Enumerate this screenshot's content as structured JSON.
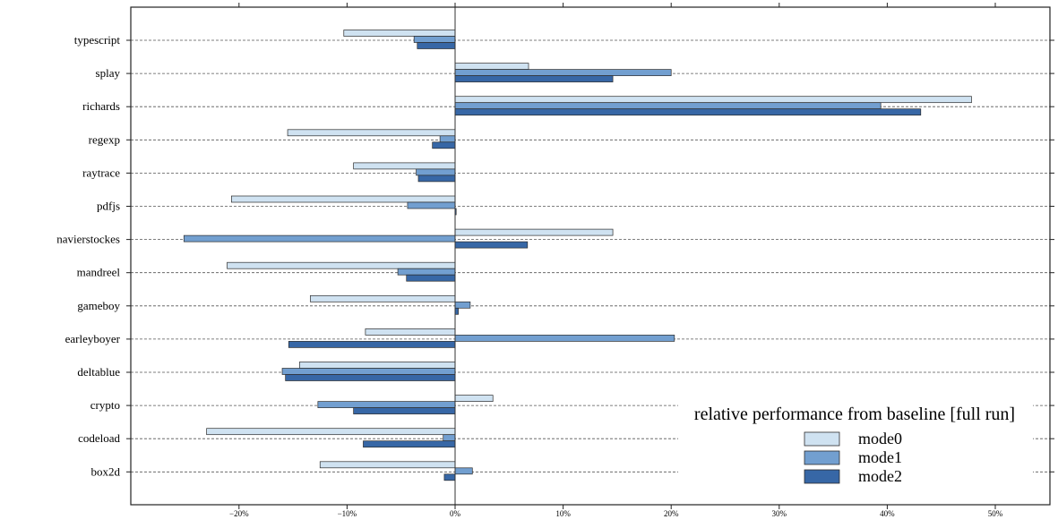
{
  "chart_data": {
    "type": "bar",
    "orientation": "horizontal",
    "categories": [
      "typescript",
      "splay",
      "richards",
      "regexp",
      "raytrace",
      "pdfjs",
      "navierstockes",
      "mandreel",
      "gameboy",
      "earleyboyer",
      "deltablue",
      "crypto",
      "codeload",
      "box2d"
    ],
    "series": [
      {
        "name": "mode0",
        "color": "#cfe2f1",
        "values": [
          -10.3,
          6.8,
          47.8,
          -15.5,
          -9.4,
          -20.7,
          14.6,
          -21.1,
          -13.4,
          -8.3,
          -14.4,
          3.5,
          -23.0,
          -12.5
        ]
      },
      {
        "name": "mode1",
        "color": "#729fd0",
        "values": [
          -3.8,
          20.0,
          39.4,
          -1.4,
          -3.6,
          -4.4,
          -25.1,
          -5.3,
          1.4,
          20.3,
          -16.0,
          -12.7,
          -1.1,
          1.6
        ]
      },
      {
        "name": "mode2",
        "color": "#3767a6",
        "values": [
          -3.5,
          14.6,
          43.1,
          -2.1,
          -3.4,
          0.1,
          6.7,
          -4.5,
          0.3,
          -15.4,
          -15.7,
          -9.4,
          -8.5,
          -1.0
        ]
      }
    ],
    "xlim": [
      -30,
      55
    ],
    "xticks": [
      -20,
      -10,
      0,
      10,
      20,
      30,
      40,
      50
    ],
    "xtick_labels": [
      "−20%",
      "−10%",
      "0%",
      "10%",
      "20%",
      "30%",
      "40%",
      "50%"
    ],
    "grid": "horizontal-dashed",
    "legend": {
      "title": "relative performance from baseline [full run]",
      "placement": "bottom-right"
    }
  }
}
